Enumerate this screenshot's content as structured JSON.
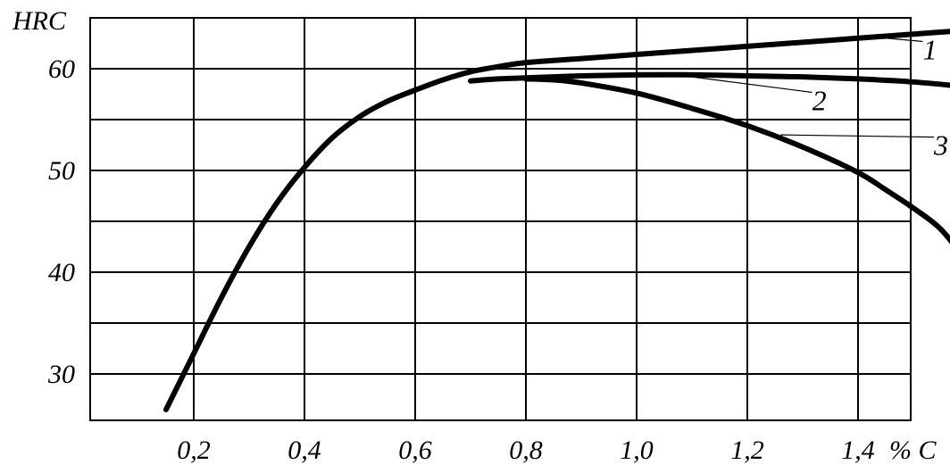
{
  "chart_data": {
    "type": "line",
    "ylabel": "HRC",
    "xlabel": "% C",
    "xlim": [
      0.0,
      1.6
    ],
    "ylim": [
      25,
      65
    ],
    "grid": true,
    "x_ticks": [
      0.2,
      0.4,
      0.6,
      0.8,
      1.0,
      1.2,
      1.4
    ],
    "x_tick_labels": [
      "0,2",
      "0,4",
      "0,6",
      "0,8",
      "1,0",
      "1,2",
      "1,4"
    ],
    "y_ticks": [
      30,
      40,
      50,
      60
    ],
    "y_tick_labels": [
      "30",
      "40",
      "50",
      "60"
    ],
    "series": [
      {
        "name": "1",
        "x": [
          0.15,
          0.2,
          0.25,
          0.3,
          0.35,
          0.4,
          0.45,
          0.5,
          0.55,
          0.6,
          0.65,
          0.7,
          0.75,
          0.8,
          0.9,
          1.0,
          1.1,
          1.2,
          1.3,
          1.4,
          1.5,
          1.6
        ],
        "y": [
          26.5,
          32,
          37.5,
          42.5,
          46.8,
          50.3,
          53.2,
          55.3,
          56.8,
          57.9,
          58.9,
          59.7,
          60.2,
          60.6,
          61.0,
          61.4,
          61.8,
          62.2,
          62.6,
          63.0,
          63.4,
          63.8
        ]
      },
      {
        "name": "2",
        "x": [
          0.7,
          0.75,
          0.8,
          0.9,
          1.0,
          1.1,
          1.2,
          1.3,
          1.4,
          1.5,
          1.6
        ],
        "y": [
          58.8,
          59.0,
          59.1,
          59.3,
          59.4,
          59.4,
          59.3,
          59.2,
          59.0,
          58.7,
          58.2
        ]
      },
      {
        "name": "3",
        "x": [
          0.8,
          0.85,
          0.9,
          1.0,
          1.1,
          1.2,
          1.3,
          1.4,
          1.45,
          1.5,
          1.55,
          1.6
        ],
        "y": [
          59.0,
          58.9,
          58.6,
          57.6,
          56.1,
          54.4,
          52.3,
          49.8,
          48.1,
          46.3,
          44.2,
          40.8
        ]
      }
    ],
    "curve_labels": [
      {
        "text": "1",
        "x": 1.53,
        "y": 61.8,
        "anchor_x": 1.43,
        "anchor_y": 63.1
      },
      {
        "text": "2",
        "x": 1.33,
        "y": 56.8,
        "anchor_x": 1.1,
        "anchor_y": 59.2
      },
      {
        "text": "3",
        "x": 1.55,
        "y": 52.4,
        "anchor_x": 1.26,
        "anchor_y": 53.5
      }
    ]
  }
}
